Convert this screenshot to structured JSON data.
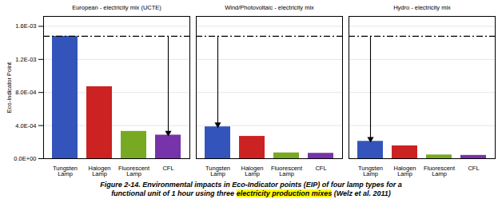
{
  "chart_data": {
    "type": "bar",
    "categories": [
      "Tungsten\nLamp",
      "Halogen\nLamp",
      "Fluorescent\nLamp",
      "CFL"
    ],
    "series": [
      {
        "name": "European - electricity mix (UCTE)",
        "values": [
          0.00148,
          0.00087,
          0.00033,
          0.000285
        ],
        "colors": [
          "#3355BB",
          "#CC2222",
          "#77AA22",
          "#7733AA"
        ]
      },
      {
        "name": "Wind/Photovoltaic - electricity mix",
        "values": [
          0.000385,
          0.00027,
          7e-05,
          6.5e-05
        ],
        "colors": [
          "#3355BB",
          "#CC2222",
          "#77AA22",
          "#7733AA"
        ]
      },
      {
        "name": "Hydro - electricity mix",
        "values": [
          0.00021,
          0.000155,
          4.5e-05,
          4e-05
        ],
        "colors": [
          "#3355BB",
          "#CC2222",
          "#77AA22",
          "#7733AA"
        ]
      }
    ],
    "ylabel": "Eco-Indicator Point",
    "ylim": [
      0,
      0.00172
    ],
    "yticks": [
      {
        "value": 0.0,
        "label": "0.0E+00"
      },
      {
        "value": 0.0004,
        "label": "4.0E-04"
      },
      {
        "value": 0.0008,
        "label": "8.0E-04"
      },
      {
        "value": 0.0012,
        "label": "1.2E-03"
      },
      {
        "value": 0.0016,
        "label": "1.6E-03"
      }
    ],
    "grid": true,
    "reference_line": 0.00148,
    "arrows": [
      {
        "series": "European - electricity mix (UCTE)",
        "category": "CFL"
      },
      {
        "series": "Wind/Photovoltaic - electricity mix",
        "category": "Tungsten\nLamp"
      },
      {
        "series": "Hydro - electricity mix",
        "category": "Tungsten\nLamp"
      }
    ],
    "caption": [
      "Figure 2-14. Environmental impacts in Eco-Indicator points (EIP) of four lamp types for a",
      "functional unit of 1 hour using three electricity production mixes (Welz et al. 2011)"
    ],
    "caption_highlight": "electricity production mixes"
  }
}
